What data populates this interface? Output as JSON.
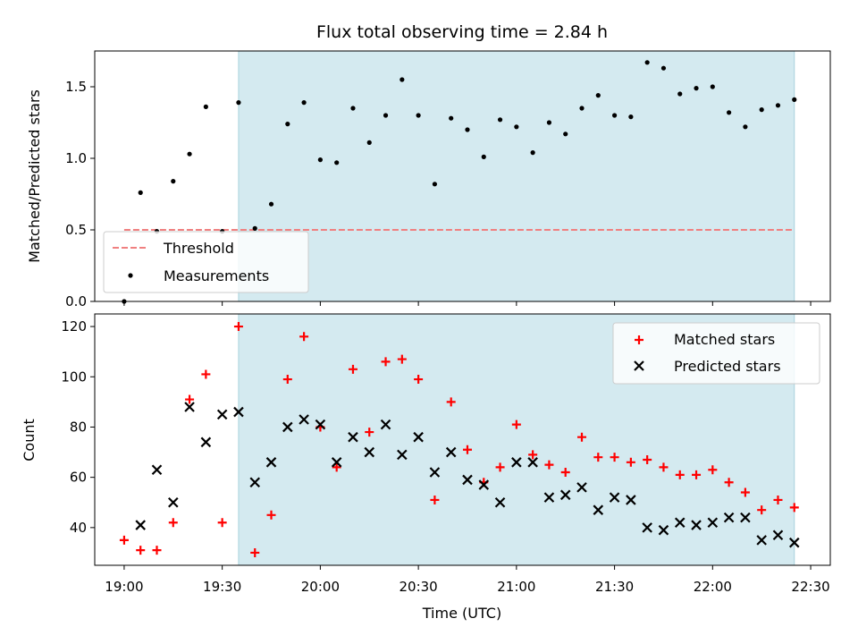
{
  "title": "Flux total observing time = 2.84 h",
  "colors": {
    "band": "#d4eaf0",
    "band_edge": "#a9d2de",
    "threshold": "#f08080",
    "measurements": "#000000",
    "matched": "#ff0000",
    "predicted": "#000000"
  },
  "chart_data": [
    {
      "type": "scatter",
      "ylabel": "Matched/Predicted stars",
      "xlim": [
        "18:51",
        "22:36"
      ],
      "ylim": [
        0,
        1.75
      ],
      "yticks": [
        0.0,
        0.5,
        1.0,
        1.5
      ],
      "yticklabels": [
        "0.0",
        "0.5",
        "1.0",
        "1.5"
      ],
      "grid": false,
      "legend_position": "lower-left",
      "shaded_interval": [
        "19:35",
        "22:25"
      ],
      "threshold": {
        "name": "Threshold",
        "value": 0.5,
        "x_start": "19:00",
        "x_end": "22:25"
      },
      "series": [
        {
          "name": "Measurements",
          "x": [
            "19:00",
            "19:05",
            "19:10",
            "19:15",
            "19:20",
            "19:25",
            "19:30",
            "19:35",
            "19:40",
            "19:45",
            "19:50",
            "19:55",
            "20:00",
            "20:05",
            "20:10",
            "20:15",
            "20:20",
            "20:25",
            "20:30",
            "20:35",
            "20:40",
            "20:45",
            "20:50",
            "20:55",
            "21:00",
            "21:05",
            "21:10",
            "21:15",
            "21:20",
            "21:25",
            "21:30",
            "21:35",
            "21:40",
            "21:45",
            "21:50",
            "21:55",
            "22:00",
            "22:05",
            "22:10",
            "22:15",
            "22:20",
            "22:25"
          ],
          "y": [
            0.0,
            0.76,
            0.49,
            0.84,
            1.03,
            1.36,
            0.49,
            1.39,
            0.51,
            0.68,
            1.24,
            1.39,
            0.99,
            0.97,
            1.35,
            1.11,
            1.3,
            1.55,
            1.3,
            0.82,
            1.28,
            1.2,
            1.01,
            1.27,
            1.22,
            1.04,
            1.25,
            1.17,
            1.35,
            1.44,
            1.3,
            1.29,
            1.67,
            1.63,
            1.45,
            1.49,
            1.5,
            1.32,
            1.22,
            1.34,
            1.37,
            1.41
          ]
        }
      ]
    },
    {
      "type": "scatter",
      "xlabel": "Time (UTC)",
      "ylabel": "Count",
      "xlim": [
        "18:51",
        "22:36"
      ],
      "ylim": [
        25,
        125
      ],
      "xticks": [
        "19:00",
        "19:30",
        "20:00",
        "20:30",
        "21:00",
        "21:30",
        "22:00",
        "22:30"
      ],
      "yticks": [
        40,
        60,
        80,
        100,
        120
      ],
      "yticklabels": [
        "40",
        "60",
        "80",
        "100",
        "120"
      ],
      "grid": false,
      "legend_position": "top-right",
      "shaded_interval": [
        "19:35",
        "22:25"
      ],
      "series": [
        {
          "name": "Matched stars",
          "marker": "+",
          "x": [
            "19:00",
            "19:05",
            "19:10",
            "19:15",
            "19:20",
            "19:25",
            "19:30",
            "19:35",
            "19:40",
            "19:45",
            "19:50",
            "19:55",
            "20:00",
            "20:05",
            "20:10",
            "20:15",
            "20:20",
            "20:25",
            "20:30",
            "20:35",
            "20:40",
            "20:45",
            "20:50",
            "20:55",
            "21:00",
            "21:05",
            "21:10",
            "21:15",
            "21:20",
            "21:25",
            "21:30",
            "21:35",
            "21:40",
            "21:45",
            "21:50",
            "21:55",
            "22:00",
            "22:05",
            "22:10",
            "22:15",
            "22:20",
            "22:25"
          ],
          "y": [
            35,
            31,
            31,
            42,
            91,
            101,
            42,
            120,
            30,
            45,
            99,
            116,
            80,
            64,
            103,
            78,
            106,
            107,
            99,
            51,
            90,
            71,
            58,
            64,
            81,
            69,
            65,
            62,
            76,
            68,
            68,
            66,
            67,
            64,
            61,
            61,
            63,
            58,
            54,
            47,
            51,
            48
          ]
        },
        {
          "name": "Predicted stars",
          "marker": "x",
          "x": [
            "19:05",
            "19:10",
            "19:15",
            "19:20",
            "19:25",
            "19:30",
            "19:35",
            "19:40",
            "19:45",
            "19:50",
            "19:55",
            "20:00",
            "20:05",
            "20:10",
            "20:15",
            "20:20",
            "20:25",
            "20:30",
            "20:35",
            "20:40",
            "20:45",
            "20:50",
            "20:55",
            "21:00",
            "21:05",
            "21:10",
            "21:15",
            "21:20",
            "21:25",
            "21:30",
            "21:35",
            "21:40",
            "21:45",
            "21:50",
            "21:55",
            "22:00",
            "22:05",
            "22:10",
            "22:15",
            "22:20",
            "22:25"
          ],
          "y": [
            41,
            63,
            50,
            88,
            74,
            85,
            86,
            58,
            66,
            80,
            83,
            81,
            66,
            76,
            70,
            81,
            69,
            76,
            62,
            70,
            59,
            57,
            50,
            66,
            66,
            52,
            53,
            56,
            47,
            52,
            51,
            40,
            39,
            42,
            41,
            42,
            44,
            44,
            35,
            37,
            34
          ]
        }
      ]
    }
  ]
}
